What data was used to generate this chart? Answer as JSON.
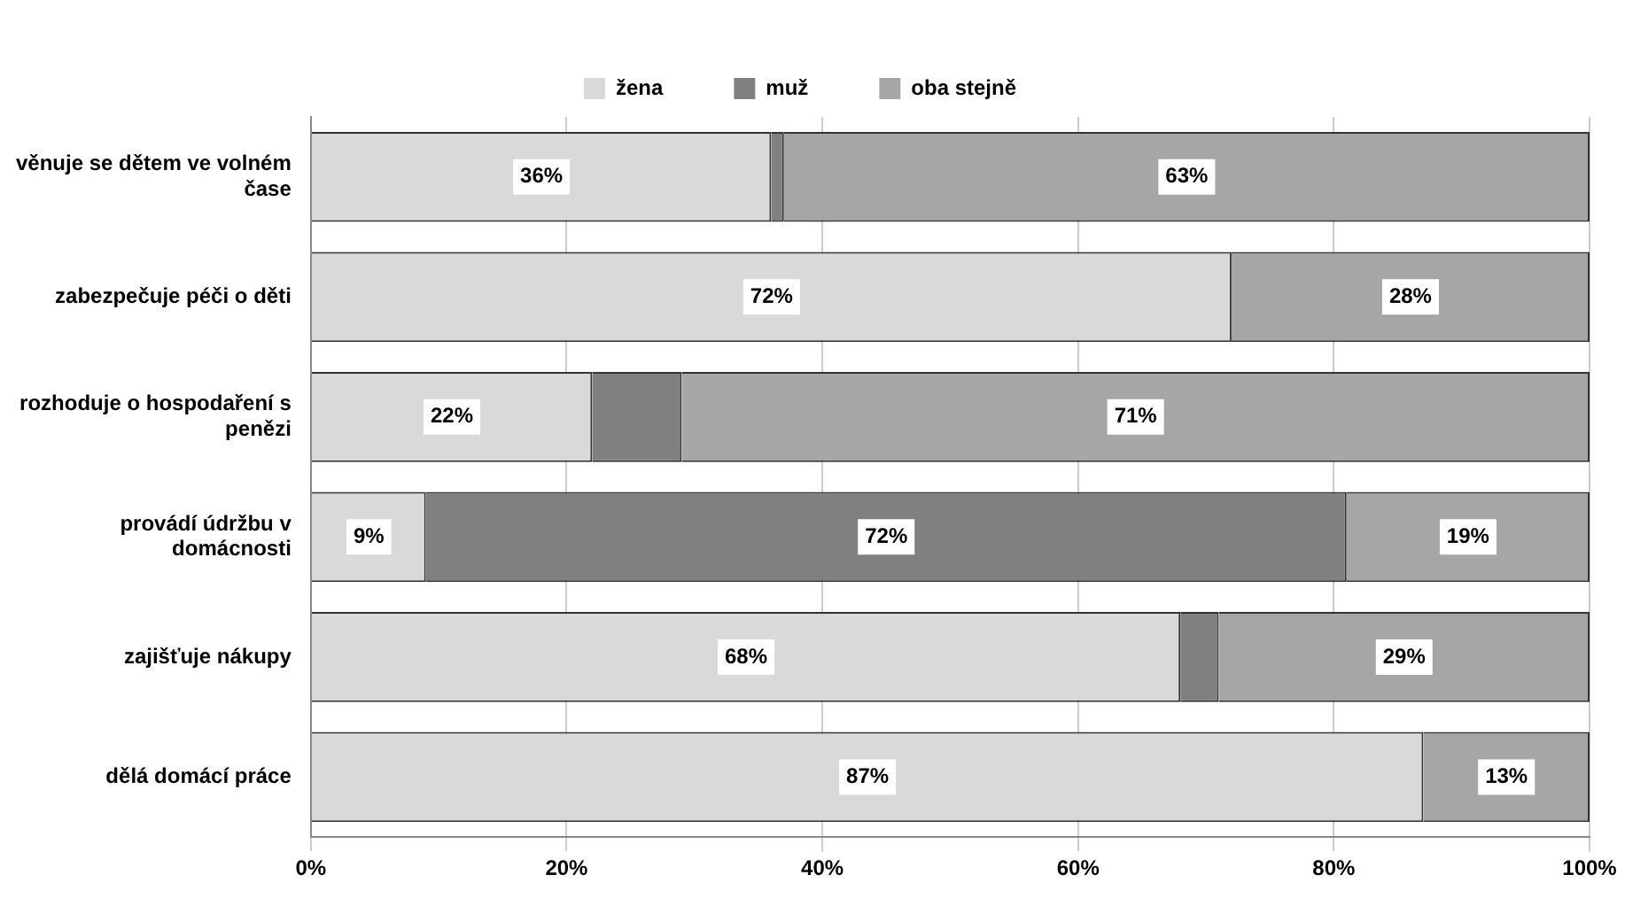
{
  "chart_data": {
    "type": "bar",
    "orientation": "horizontal",
    "stacked": true,
    "categories": [
      "věnuje se dětem ve volném čase",
      "zabezpečuje péči o děti",
      "rozhoduje o hospodaření s penězi",
      "provádí údržbu v domácnosti",
      "zajišťuje nákupy",
      "dělá domácí práce"
    ],
    "series": [
      {
        "name": "žena",
        "color": "#d9d9d9",
        "values": [
          36,
          72,
          22,
          9,
          68,
          87
        ],
        "value_labels": [
          "36%",
          "72%",
          "22%",
          "9%",
          "68%",
          "87%"
        ]
      },
      {
        "name": "muž",
        "color": "#808080",
        "values": [
          1,
          0,
          7,
          72,
          3,
          0
        ],
        "value_labels": [
          null,
          null,
          null,
          "72%",
          null,
          null
        ]
      },
      {
        "name": "oba stejně",
        "color": "#a6a6a6",
        "values": [
          63,
          28,
          71,
          19,
          29,
          13
        ],
        "value_labels": [
          "63%",
          "28%",
          "71%",
          "19%",
          "29%",
          "13%"
        ]
      }
    ],
    "xlim": [
      0,
      100
    ],
    "xticks": [
      {
        "value": 0,
        "label": "0%"
      },
      {
        "value": 20,
        "label": "20%"
      },
      {
        "value": 40,
        "label": "40%"
      },
      {
        "value": 60,
        "label": "60%"
      },
      {
        "value": 80,
        "label": "80%"
      },
      {
        "value": 100,
        "label": "100%"
      }
    ],
    "grid": "x",
    "legend": "top"
  }
}
